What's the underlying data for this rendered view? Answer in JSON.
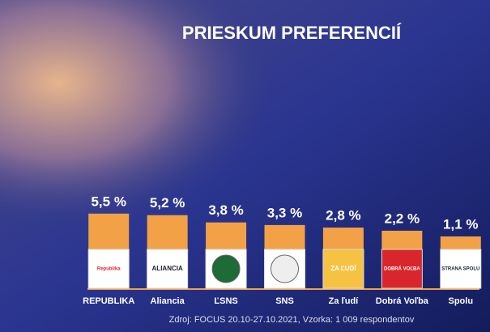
{
  "chart_data": {
    "type": "bar",
    "title": "PRIESKUM PREFERENCIÍ",
    "categories": [
      "REPUBLIKA",
      "Aliancia",
      "ĽSNS",
      "SNS",
      "Za ľudí",
      "Dobrá Voľba",
      "Spolu"
    ],
    "values": [
      5.5,
      5.2,
      3.8,
      3.3,
      2.8,
      2.2,
      1.1
    ],
    "value_labels": [
      "5,5 %",
      "5,2 %",
      "3,8 %",
      "3,3 %",
      "2,8 %",
      "2,2 %",
      "1,1 %"
    ],
    "logos": [
      "Republika",
      "ALIANCIA",
      null,
      null,
      "ZA ĽUDÍ",
      "DOBRÁ VOĽBA",
      "STRANA SPOLU"
    ],
    "color": "#f2a146",
    "source": "Zdroj: FOCUS 20.10-27.10.2021, Vzorka: 1 009 respondentov"
  }
}
